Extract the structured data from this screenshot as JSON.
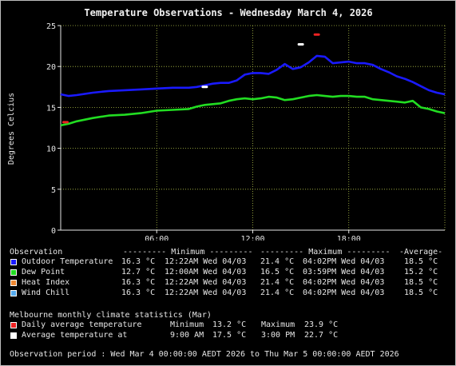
{
  "chart_data": {
    "type": "line",
    "title": "Temperature Observations - Wednesday March 4, 2026",
    "ylabel": "Degrees Celcius",
    "xlabel": "",
    "xlim": [
      0,
      24
    ],
    "ylim": [
      0,
      25
    ],
    "x_ticks": [
      6,
      12,
      18
    ],
    "x_tick_labels": [
      "06:00",
      "12:00",
      "18:00"
    ],
    "y_ticks": [
      0,
      5,
      10,
      15,
      20,
      25
    ],
    "y_tick_labels": [
      "0",
      "5",
      "10",
      "15",
      "20",
      "25"
    ],
    "grid": true,
    "series": [
      {
        "name": "Outdoor Temperature",
        "color": "#1a1aff",
        "x": [
          0,
          0.5,
          1,
          2,
          3,
          4,
          5,
          6,
          7,
          8,
          8.5,
          9,
          9.5,
          10,
          10.5,
          11,
          11.5,
          12,
          12.5,
          13,
          13.5,
          14,
          14.5,
          15,
          15.5,
          16,
          16.5,
          17,
          17.5,
          18,
          18.5,
          19,
          19.5,
          20,
          20.5,
          21,
          21.5,
          22,
          22.5,
          23,
          23.5,
          24
        ],
        "y": [
          16.6,
          16.4,
          16.5,
          16.8,
          17.0,
          17.1,
          17.2,
          17.3,
          17.4,
          17.4,
          17.5,
          17.7,
          17.9,
          18.0,
          18.0,
          18.3,
          19.0,
          19.2,
          19.2,
          19.1,
          19.6,
          20.3,
          19.7,
          19.9,
          20.5,
          21.3,
          21.2,
          20.4,
          20.5,
          20.6,
          20.4,
          20.4,
          20.2,
          19.7,
          19.3,
          18.8,
          18.5,
          18.1,
          17.6,
          17.1,
          16.8,
          16.6
        ]
      },
      {
        "name": "Dew Point",
        "color": "#22dd22",
        "x": [
          0,
          0.5,
          1,
          2,
          3,
          4,
          5,
          6,
          7,
          8,
          8.5,
          9,
          9.5,
          10,
          10.5,
          11,
          11.5,
          12,
          12.5,
          13,
          13.5,
          14,
          14.5,
          15,
          15.5,
          16,
          16.5,
          17,
          17.5,
          18,
          18.5,
          19,
          19.5,
          20,
          20.5,
          21,
          21.5,
          22,
          22.5,
          23,
          23.5,
          24
        ],
        "y": [
          12.8,
          13.0,
          13.3,
          13.7,
          14.0,
          14.1,
          14.3,
          14.6,
          14.7,
          14.8,
          15.1,
          15.3,
          15.4,
          15.5,
          15.8,
          16.0,
          16.1,
          16.0,
          16.1,
          16.3,
          16.2,
          15.9,
          16.0,
          16.2,
          16.4,
          16.5,
          16.4,
          16.3,
          16.4,
          16.4,
          16.3,
          16.3,
          16.0,
          15.9,
          15.8,
          15.7,
          15.6,
          15.8,
          15.0,
          14.8,
          14.5,
          14.3
        ]
      }
    ],
    "markers": [
      {
        "name": "Daily average temperature max",
        "x": 16.0,
        "y": 23.9,
        "color": "#ee2222"
      },
      {
        "name": "Daily average temperature min",
        "x": 0.3,
        "y": 13.2,
        "color": "#ee2222"
      },
      {
        "name": "Average temperature at 9:00 AM",
        "x": 9.0,
        "y": 17.5,
        "color": "#ffffff"
      },
      {
        "name": "Average temperature at 3:00 PM",
        "x": 15.0,
        "y": 22.7,
        "color": "#ffffff"
      }
    ]
  },
  "table": {
    "header": {
      "observation": "Observation",
      "minimum": "--------- Minimum ---------",
      "maximum": "--------- Maximum ---------",
      "average": "-Average-"
    },
    "rows": [
      {
        "label": "Outdoor Temperature",
        "color": "#1a1aff",
        "min_value": "16.3 °C",
        "min_time": "12:22AM Wed 04/03",
        "max_value": "21.4 °C",
        "max_time": "04:02PM Wed 04/03",
        "average": "18.5 °C"
      },
      {
        "label": "Dew Point",
        "color": "#22dd22",
        "min_value": "12.7 °C",
        "min_time": "12:00AM Wed 04/03",
        "max_value": "16.5 °C",
        "max_time": "03:59PM Wed 04/03",
        "average": "15.2 °C"
      },
      {
        "label": "Heat Index",
        "color": "#ee8833",
        "min_value": "16.3 °C",
        "min_time": "12:22AM Wed 04/03",
        "max_value": "21.4 °C",
        "max_time": "04:02PM Wed 04/03",
        "average": "18.5 °C"
      },
      {
        "label": "Wind Chill",
        "color": "#55aaee",
        "min_value": "16.3 °C",
        "min_time": "12:22AM Wed 04/03",
        "max_value": "21.4 °C",
        "max_time": "04:02PM Wed 04/03",
        "average": "18.5 °C"
      }
    ]
  },
  "climate": {
    "title": "Melbourne monthly climate statistics (Mar)",
    "daily": {
      "label": "Daily average temperature",
      "color": "#ee2222",
      "min_label": "Minimum",
      "min_value": "13.2 °C",
      "max_label": "Maximum",
      "max_value": "23.9 °C"
    },
    "avg_at": {
      "label": "Average temperature at",
      "color": "#ffffff",
      "time1": "9:00 AM",
      "value1": "17.5 °C",
      "time2": "3:00 PM",
      "value2": "22.7 °C"
    }
  },
  "period": "Observation period : Wed Mar 4 00:00:00 AEDT 2026 to Thu Mar 5 00:00:00 AEDT 2026"
}
